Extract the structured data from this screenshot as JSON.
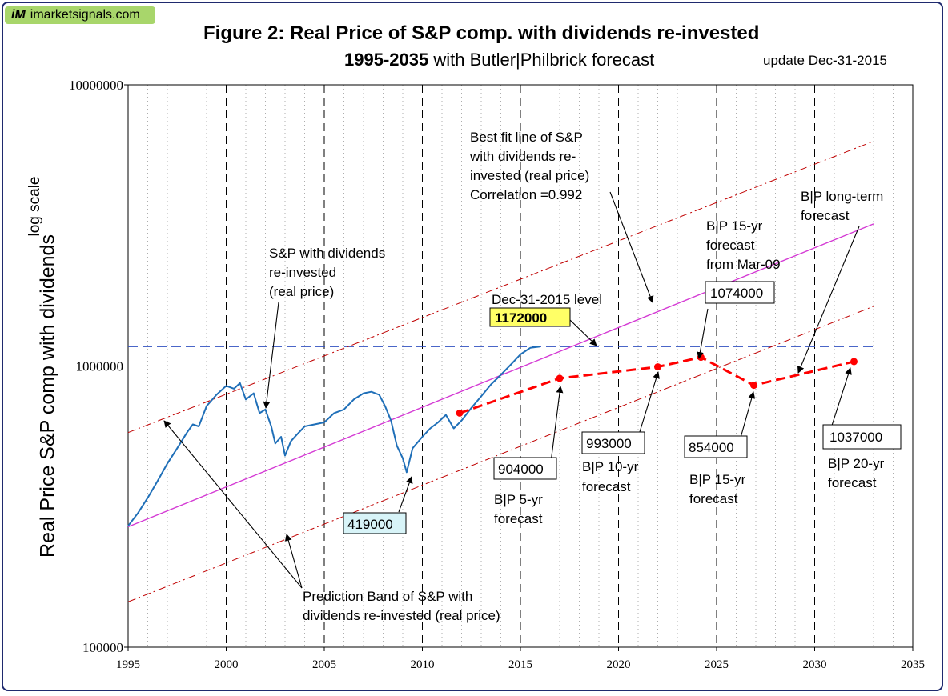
{
  "badge": {
    "icon": "iM",
    "site": "imarketsignals.com"
  },
  "title": {
    "line1": "Figure 2:  Real Price of S&P comp. with dividends re-invested",
    "line2_bold": "1995-2035",
    "line2_rest": " with Butler|Philbrick forecast",
    "update": "update Dec-31-2015"
  },
  "axes": {
    "ylabel": "Real Price S&P comp with dividends",
    "ylabel_scale": "log scale",
    "y_ticks": [
      "100000",
      "1000000",
      "10000000"
    ],
    "x_ticks": [
      "1995",
      "2000",
      "2005",
      "2010",
      "2015",
      "2020",
      "2025",
      "2030",
      "2035"
    ]
  },
  "annotations": {
    "sp_label": [
      "S&P with dividends",
      "re-invested",
      "(real price)"
    ],
    "bestfit": [
      "Best fit line of S&P",
      "with dividends re-",
      "invested (real price)",
      "Correlation =0.992"
    ],
    "dec_level": "Dec-31-2015 level",
    "dec_value": "1172000",
    "low_value": "419000",
    "band": [
      "Prediction Band of S&P with",
      "dividends re-invested (real price)"
    ],
    "f15_mar": [
      "B|P 15-yr",
      "forecast",
      "from Mar-09"
    ],
    "f15_mar_value": "1074000",
    "long_term": [
      "B|P long-term",
      "forecast"
    ],
    "f5_value": "904000",
    "f5_label": [
      "B|P 5-yr",
      "forecast"
    ],
    "f10_value": "993000",
    "f10_label": [
      "B|P 10-yr",
      "forecast"
    ],
    "f15_value": "854000",
    "f15_label": [
      "B|P 15-yr",
      "forecast"
    ],
    "f20_value": "1037000",
    "f20_label": [
      "B|P 20-yr",
      "forecast"
    ]
  },
  "colors": {
    "sp_line": "#1f6fb8",
    "fit_line": "#d43ad4",
    "band": "#c00000",
    "forecast": "#ff0000",
    "dec_line": "#3050c0",
    "highlight_yellow": "#ffff66",
    "highlight_cyan": "#d8f4f8"
  },
  "chart_data": {
    "type": "line",
    "title": "Figure 2:  Real Price of S&P comp. with dividends re-invested",
    "subtitle": "1995-2035 with Butler|Philbrick forecast",
    "xlabel": "",
    "ylabel": "Real Price S&P comp with dividends",
    "xlim": [
      1995,
      2035
    ],
    "ylim": [
      100000,
      10000000
    ],
    "y_scale": "log",
    "grid": "dashed vertical lines at each year",
    "series": [
      {
        "name": "S&P with dividends re-invested (real price)",
        "x": [
          1995.0,
          1995.5,
          1996.0,
          1996.5,
          1997.0,
          1997.5,
          1998.0,
          1998.3,
          1998.6,
          1999.0,
          1999.5,
          2000.0,
          2000.4,
          2000.7,
          2001.0,
          2001.4,
          2001.7,
          2002.0,
          2002.3,
          2002.5,
          2002.8,
          2003.0,
          2003.3,
          2003.6,
          2004.0,
          2004.5,
          2005.0,
          2005.5,
          2006.0,
          2006.5,
          2007.0,
          2007.4,
          2007.8,
          2008.1,
          2008.4,
          2008.7,
          2009.0,
          2009.2,
          2009.5,
          2010.0,
          2010.4,
          2010.8,
          2011.2,
          2011.6,
          2012.0,
          2012.5,
          2013.0,
          2013.5,
          2014.0,
          2014.5,
          2015.0,
          2015.5,
          2016.0
        ],
        "y": [
          270000,
          300000,
          340000,
          390000,
          450000,
          510000,
          580000,
          620000,
          610000,
          720000,
          790000,
          850000,
          830000,
          870000,
          760000,
          800000,
          680000,
          700000,
          610000,
          530000,
          560000,
          480000,
          540000,
          570000,
          610000,
          620000,
          630000,
          680000,
          700000,
          760000,
          800000,
          810000,
          790000,
          720000,
          640000,
          520000,
          470000,
          419000,
          510000,
          560000,
          600000,
          630000,
          670000,
          600000,
          640000,
          710000,
          780000,
          860000,
          930000,
          1010000,
          1100000,
          1160000,
          1172000
        ]
      },
      {
        "name": "Best fit line of S&P with dividends re-invested (real price)",
        "x": [
          1995,
          2033
        ],
        "y": [
          268000,
          3200000
        ]
      },
      {
        "name": "Prediction Band of S&P with dividends re-invested (real price) upper",
        "x": [
          1995,
          2033
        ],
        "y": [
          580000,
          6300000
        ]
      },
      {
        "name": "Prediction Band of S&P with dividends re-invested (real price) lower",
        "x": [
          1995,
          2033
        ],
        "y": [
          145000,
          1630000
        ]
      },
      {
        "name": "B|P forecast",
        "x": [
          2011.9,
          2017.0,
          2022.0,
          2024.2,
          2026.9,
          2032.0
        ],
        "y": [
          680000,
          904000,
          993000,
          1074000,
          854000,
          1037000
        ]
      },
      {
        "name": "Dec-31-2015 level",
        "x": [
          1995,
          2033
        ],
        "y": [
          1172000,
          1172000
        ]
      },
      {
        "name": "1000000 reference",
        "x": [
          1995,
          2033
        ],
        "y": [
          1000000,
          1000000
        ]
      }
    ]
  }
}
